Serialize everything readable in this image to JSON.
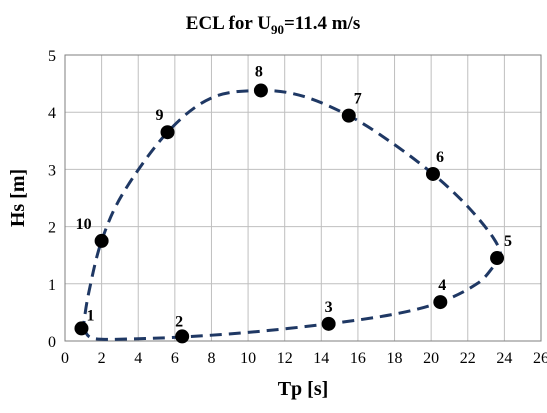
{
  "chart_data": {
    "type": "scatter",
    "title": {
      "prefix": "ECL for U",
      "subscript": "90",
      "suffix": "=11.4 m/s"
    },
    "xlabel": "Tp [s]",
    "ylabel": "Hs [m]",
    "xlim": [
      0,
      26
    ],
    "ylim": [
      0,
      5
    ],
    "xticks": [
      "0",
      "2",
      "4",
      "6",
      "8",
      "10",
      "12",
      "14",
      "16",
      "18",
      "20",
      "22",
      "24",
      "26"
    ],
    "yticks": [
      "0",
      "1",
      "2",
      "3",
      "4",
      "5"
    ],
    "grid": true,
    "series": [
      {
        "points": [
          {
            "label": "1",
            "x": 0.9,
            "y": 0.22
          },
          {
            "label": "2",
            "x": 6.4,
            "y": 0.08
          },
          {
            "label": "3",
            "x": 14.4,
            "y": 0.3
          },
          {
            "label": "4",
            "x": 20.5,
            "y": 0.68
          },
          {
            "label": "5",
            "x": 23.6,
            "y": 1.45
          },
          {
            "label": "6",
            "x": 20.1,
            "y": 2.92
          },
          {
            "label": "7",
            "x": 15.5,
            "y": 3.94
          },
          {
            "label": "8",
            "x": 10.7,
            "y": 4.38
          },
          {
            "label": "9",
            "x": 5.6,
            "y": 3.65
          },
          {
            "label": "10",
            "x": 2.0,
            "y": 1.75
          }
        ]
      }
    ],
    "contour_line": {
      "style": "dashed",
      "color": "#1f3864",
      "x": [
        1.0,
        1.3,
        2.0,
        4.0,
        6.4,
        10.0,
        14.4,
        18.0,
        20.5,
        22.5,
        23.4,
        23.8,
        23.4,
        22.0,
        20.1,
        17.7,
        15.5,
        13.0,
        10.7,
        8.0,
        5.6,
        3.2,
        2.0,
        1.3,
        1.0
      ],
      "y": [
        0.25,
        0.08,
        0.03,
        0.04,
        0.07,
        0.15,
        0.3,
        0.47,
        0.68,
        1.0,
        1.3,
        1.48,
        1.8,
        2.35,
        2.92,
        3.5,
        3.94,
        4.28,
        4.38,
        4.25,
        3.65,
        2.6,
        1.75,
        0.85,
        0.25
      ]
    }
  }
}
